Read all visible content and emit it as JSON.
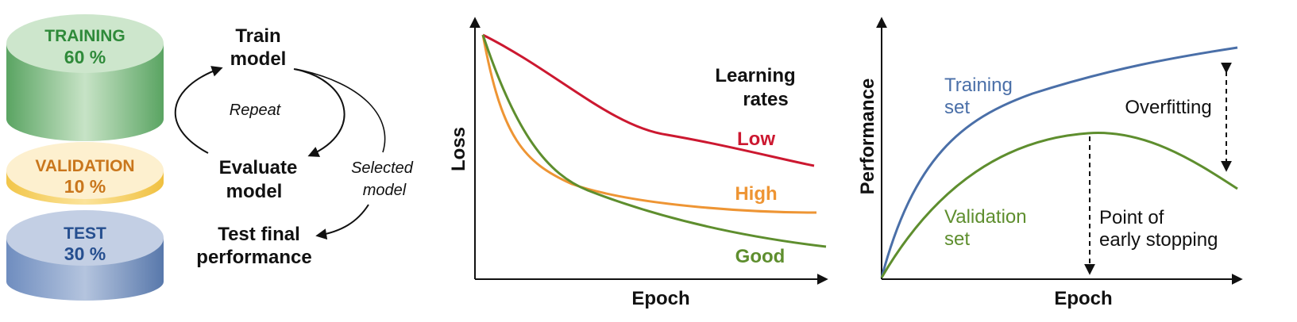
{
  "datasets": {
    "training": {
      "label": "TRAINING",
      "percent": "60 %",
      "value": 60,
      "color": "#2f8a3a"
    },
    "validation": {
      "label": "VALIDATION",
      "percent": "10 %",
      "value": 10,
      "color": "#c9761c"
    },
    "test": {
      "label": "TEST",
      "percent": "30 %",
      "value": 30,
      "color": "#264f8f"
    }
  },
  "cycle": {
    "train_line1": "Train",
    "train_line2": "model",
    "repeat": "Repeat",
    "evaluate_line1": "Evaluate",
    "evaluate_line2": "model",
    "selected_line1": "Selected",
    "selected_line2": "model",
    "test_line1": "Test final",
    "test_line2": "performance"
  },
  "chart_data": [
    {
      "type": "line",
      "xlabel": "Epoch",
      "ylabel": "Loss",
      "legend_title_line1": "Learning",
      "legend_title_line2": "rates",
      "grid": false,
      "series": [
        {
          "name": "Low",
          "color": "#cc1830"
        },
        {
          "name": "High",
          "color": "#ee9534"
        },
        {
          "name": "Good",
          "color": "#5e8e2e"
        }
      ]
    },
    {
      "type": "line",
      "xlabel": "Epoch",
      "ylabel": "Performance",
      "grid": false,
      "series": [
        {
          "name_line1": "Training",
          "name_line2": "set",
          "color": "#4a6fa8"
        },
        {
          "name_line1": "Validation",
          "name_line2": "set",
          "color": "#5e8e2e"
        }
      ],
      "annotations": {
        "overfitting": "Overfitting",
        "early_line1": "Point of",
        "early_line2": "early stopping"
      }
    }
  ]
}
